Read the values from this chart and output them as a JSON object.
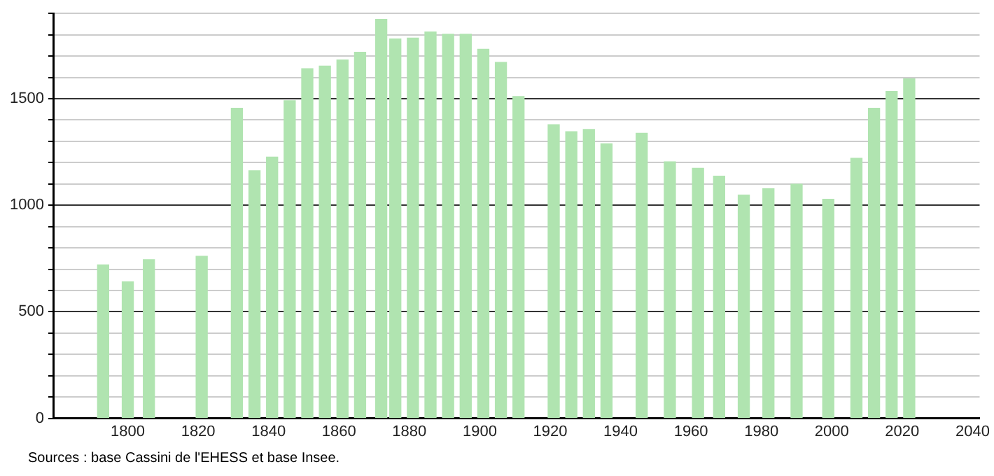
{
  "chart_data": {
    "type": "bar",
    "x": [
      1793,
      1800,
      1806,
      1821,
      1831,
      1836,
      1841,
      1846,
      1851,
      1856,
      1861,
      1866,
      1872,
      1876,
      1881,
      1886,
      1891,
      1896,
      1901,
      1906,
      1911,
      1921,
      1926,
      1931,
      1936,
      1946,
      1954,
      1962,
      1968,
      1975,
      1982,
      1990,
      1999,
      2007,
      2012,
      2017,
      2022
    ],
    "values": [
      720,
      640,
      745,
      760,
      1455,
      1162,
      1226,
      1490,
      1641,
      1653,
      1682,
      1718,
      1872,
      1780,
      1784,
      1813,
      1802,
      1802,
      1732,
      1670,
      1510,
      1378,
      1345,
      1356,
      1288,
      1338,
      1204,
      1173,
      1136,
      1048,
      1077,
      1099,
      1028,
      1220,
      1455,
      1534,
      1593
    ],
    "color": "#b0e4b0",
    "xlim": [
      1779,
      2042
    ],
    "xticks": [
      1800,
      1820,
      1840,
      1860,
      1880,
      1900,
      1920,
      1940,
      1960,
      1980,
      2000,
      2020,
      2040
    ],
    "ylim": [
      0,
      1900
    ],
    "yticks": [
      0,
      {
        "value": 100,
        "label": null
      },
      {
        "value": 200,
        "label": null
      },
      {
        "value": 300,
        "label": null
      },
      {
        "value": 400,
        "label": null
      },
      500,
      {
        "value": 600,
        "label": null
      },
      {
        "value": 700,
        "label": null
      },
      {
        "value": 800,
        "label": null
      },
      {
        "value": 900,
        "label": null
      },
      1000,
      {
        "value": 1100,
        "label": null
      },
      {
        "value": 1200,
        "label": null
      },
      {
        "value": 1300,
        "label": null
      },
      {
        "value": 1400,
        "label": null
      },
      1500,
      {
        "value": 1600,
        "label": null
      },
      {
        "value": 1700,
        "label": null
      },
      {
        "value": 1800,
        "label": null
      },
      {
        "value": 1900,
        "label": null
      }
    ],
    "grid": "y",
    "legend": false,
    "annotations": [
      "Sources : base Cassini de l'EHESS et base Insee."
    ]
  }
}
